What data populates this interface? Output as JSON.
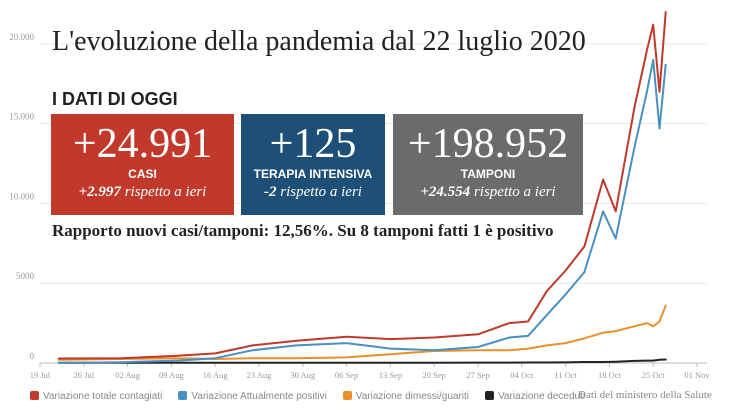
{
  "title": "L'evoluzione della pandemia dal 22 luglio 2020",
  "dati_heading": "I DATI DI OGGI",
  "boxes": {
    "casi": {
      "value": "+24.991",
      "label": "CASI",
      "delta_value": "+2.997",
      "delta_text": " rispetto a ieri",
      "color": "#c0392b"
    },
    "terapia": {
      "value": "+125",
      "label": "TERAPIA INTENSIVA",
      "delta_value": "-2",
      "delta_text": " rispetto a ieri",
      "color": "#1d4f77"
    },
    "tamponi": {
      "value": "+198.952",
      "label": "TAMPONI",
      "delta_value": "+24.554",
      "delta_text": " rispetto a ieri",
      "color": "#6b6b6b"
    }
  },
  "rapporto": "Rapporto nuovi casi/tamponi: 12,56%. Su 8 tamponi fatti 1 è positivo",
  "source": "Dati del ministero della Salute",
  "chart_data": {
    "type": "line",
    "title": "L'evoluzione della pandemia dal 22 luglio 2020",
    "xlabel": "",
    "ylabel": "",
    "x_start_label": "19 Jul",
    "x_end_label": "01 Nov",
    "ylim": [
      0,
      22000
    ],
    "yticks": [
      0,
      5000,
      10000,
      15000,
      20000
    ],
    "ytick_labels": [
      "0",
      "5000",
      "10.000",
      "15.000",
      "20.000"
    ],
    "xticks": [
      "19 Jul",
      "26 Jul",
      "02 Aug",
      "09 Aug",
      "16 Aug",
      "23 Aug",
      "30 Aug",
      "06 Sep",
      "13 Sep",
      "20 Sep",
      "27 Sep",
      "04 Oct",
      "11 Oct",
      "18 Oct",
      "25 Oct",
      "01 Nov"
    ],
    "grid": true,
    "legend_position": "bottom",
    "series": [
      {
        "name": "Variazione totale contagiati",
        "color": "#c0392b",
        "x_dates": [
          "22 Jul",
          "01 Aug",
          "10 Aug",
          "16 Aug",
          "22 Aug",
          "29 Aug",
          "06 Sep",
          "13 Sep",
          "20 Sep",
          "27 Sep",
          "02 Oct",
          "05 Oct",
          "08 Oct",
          "11 Oct",
          "14 Oct",
          "17 Oct",
          "19 Oct",
          "22 Oct",
          "24 Oct",
          "25 Oct",
          "26 Oct",
          "27 Oct"
        ],
        "values": [
          280,
          300,
          450,
          600,
          1100,
          1400,
          1650,
          1500,
          1600,
          1800,
          2500,
          2600,
          4500,
          5800,
          7300,
          11500,
          9500,
          16000,
          19600,
          21200,
          17000,
          22000
        ]
      },
      {
        "name": "Variazione Attualmente positivi",
        "color": "#4a90c2",
        "x_dates": [
          "22 Jul",
          "01 Aug",
          "10 Aug",
          "16 Aug",
          "22 Aug",
          "29 Aug",
          "06 Sep",
          "13 Sep",
          "20 Sep",
          "27 Sep",
          "02 Oct",
          "05 Oct",
          "08 Oct",
          "11 Oct",
          "14 Oct",
          "17 Oct",
          "19 Oct",
          "22 Oct",
          "24 Oct",
          "25 Oct",
          "26 Oct",
          "27 Oct"
        ],
        "values": [
          0,
          50,
          150,
          300,
          800,
          1100,
          1250,
          900,
          800,
          1000,
          1600,
          1700,
          3000,
          4300,
          5700,
          9500,
          7800,
          13500,
          17000,
          19000,
          14700,
          18700
        ]
      },
      {
        "name": "Variazione dimessi/guariti",
        "color": "#e8902c",
        "x_dates": [
          "22 Jul",
          "01 Aug",
          "10 Aug",
          "16 Aug",
          "22 Aug",
          "29 Aug",
          "06 Sep",
          "13 Sep",
          "20 Sep",
          "27 Sep",
          "02 Oct",
          "05 Oct",
          "08 Oct",
          "11 Oct",
          "14 Oct",
          "17 Oct",
          "19 Oct",
          "22 Oct",
          "24 Oct",
          "25 Oct",
          "26 Oct",
          "27 Oct"
        ],
        "values": [
          200,
          250,
          300,
          250,
          300,
          300,
          350,
          550,
          750,
          800,
          800,
          900,
          1100,
          1250,
          1550,
          1900,
          2000,
          2300,
          2500,
          2300,
          2600,
          3600
        ]
      },
      {
        "name": "Variazione deceduti",
        "color": "#222222",
        "x_dates": [
          "22 Jul",
          "01 Aug",
          "10 Aug",
          "16 Aug",
          "22 Aug",
          "29 Aug",
          "06 Sep",
          "13 Sep",
          "20 Sep",
          "27 Sep",
          "02 Oct",
          "05 Oct",
          "08 Oct",
          "11 Oct",
          "14 Oct",
          "17 Oct",
          "19 Oct",
          "22 Oct",
          "24 Oct",
          "25 Oct",
          "26 Oct",
          "27 Oct"
        ],
        "values": [
          10,
          10,
          10,
          10,
          10,
          10,
          15,
          15,
          20,
          25,
          25,
          30,
          30,
          40,
          60,
          60,
          80,
          130,
          150,
          150,
          200,
          220
        ]
      }
    ]
  }
}
